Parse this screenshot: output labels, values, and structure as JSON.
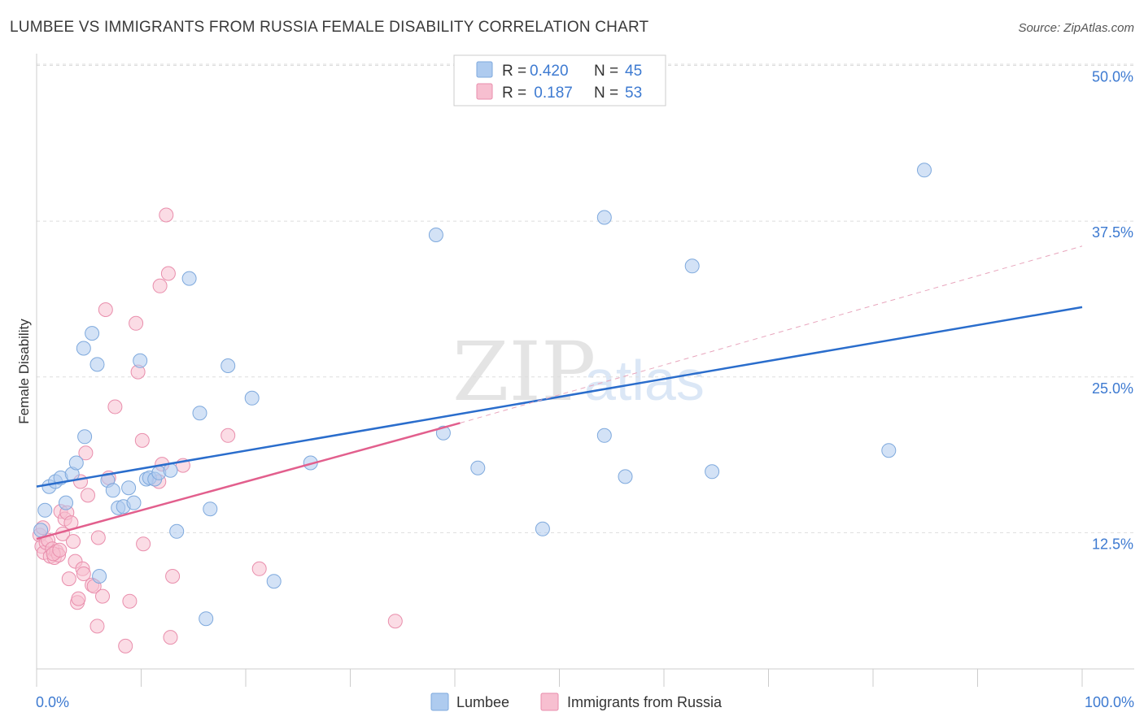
{
  "title": "LUMBEE VS IMMIGRANTS FROM RUSSIA FEMALE DISABILITY CORRELATION CHART",
  "source": "Source: ZipAtlas.com",
  "watermark": {
    "zip": "ZIP",
    "atlas": "atlas"
  },
  "colors": {
    "blue_fill": "#aecbef",
    "blue_stroke": "#7ea9dd",
    "blue_line": "#2a6dcc",
    "pink_fill": "#f7bfd0",
    "pink_stroke": "#e98eac",
    "pink_line": "#e25f8d",
    "grid": "#dddddd",
    "tick_text": "#3d7ad1"
  },
  "legend": {
    "rows": [
      {
        "r_label": "R = ",
        "r_value": "0.420",
        "n_label": "N = ",
        "n_value": "45"
      },
      {
        "r_label": "R = ",
        "r_value": " 0.187",
        "n_label": "N = ",
        "n_value": "53"
      }
    ]
  },
  "bottom_legend": {
    "series1": "Lumbee",
    "series2": "Immigrants from Russia"
  },
  "chart_data": {
    "type": "scatter",
    "title": "LUMBEE VS IMMIGRANTS FROM RUSSIA FEMALE DISABILITY CORRELATION CHART",
    "xlabel": "",
    "ylabel": "Female Disability",
    "xlim": [
      0,
      100
    ],
    "ylim": [
      0,
      52
    ],
    "x_ticks_labels": [
      "0.0%",
      "100.0%"
    ],
    "y_ticks": [
      12.5,
      25.0,
      37.5,
      50.0
    ],
    "y_tick_labels": [
      "12.5%",
      "25.0%",
      "37.5%",
      "50.0%"
    ],
    "series": [
      {
        "name": "Lumbee",
        "color": "blue",
        "trend": {
          "x": [
            0,
            100
          ],
          "y": [
            16.2,
            30.6
          ],
          "dashed_extension": false
        },
        "points": [
          [
            0.8,
            14.3
          ],
          [
            1.2,
            16.2
          ],
          [
            1.8,
            16.6
          ],
          [
            2.3,
            16.9
          ],
          [
            2.8,
            14.9
          ],
          [
            3.4,
            17.2
          ],
          [
            3.8,
            18.1
          ],
          [
            4.5,
            27.3
          ],
          [
            4.6,
            20.2
          ],
          [
            5.3,
            28.5
          ],
          [
            5.8,
            26.0
          ],
          [
            6.0,
            9.0
          ],
          [
            6.8,
            16.7
          ],
          [
            7.3,
            15.9
          ],
          [
            7.8,
            14.5
          ],
          [
            8.3,
            14.6
          ],
          [
            8.8,
            16.1
          ],
          [
            9.3,
            14.9
          ],
          [
            9.9,
            26.3
          ],
          [
            10.5,
            16.8
          ],
          [
            10.8,
            16.9
          ],
          [
            11.3,
            16.8
          ],
          [
            11.7,
            17.3
          ],
          [
            12.8,
            17.5
          ],
          [
            13.4,
            12.6
          ],
          [
            14.6,
            32.9
          ],
          [
            15.6,
            22.1
          ],
          [
            16.2,
            5.6
          ],
          [
            16.6,
            14.4
          ],
          [
            18.3,
            25.9
          ],
          [
            20.6,
            23.3
          ],
          [
            22.7,
            8.6
          ],
          [
            26.2,
            18.1
          ],
          [
            38.2,
            36.4
          ],
          [
            38.9,
            20.5
          ],
          [
            42.2,
            17.7
          ],
          [
            48.4,
            12.8
          ],
          [
            54.3,
            37.8
          ],
          [
            54.3,
            20.3
          ],
          [
            56.3,
            17.0
          ],
          [
            62.7,
            33.9
          ],
          [
            64.6,
            17.4
          ],
          [
            81.5,
            19.1
          ],
          [
            84.9,
            41.6
          ],
          [
            0.4,
            12.7
          ]
        ]
      },
      {
        "name": "Immigrants from Russia",
        "color": "pink",
        "trend": {
          "x": [
            0,
            40.5
          ],
          "y": [
            12.0,
            21.3
          ],
          "dashed_extension": true,
          "dash_to": [
            100,
            35.5
          ]
        },
        "points": [
          [
            0.3,
            12.3
          ],
          [
            0.5,
            11.4
          ],
          [
            0.7,
            10.9
          ],
          [
            0.9,
            11.7
          ],
          [
            1.1,
            11.9
          ],
          [
            1.3,
            10.6
          ],
          [
            1.5,
            11.2
          ],
          [
            1.7,
            10.5
          ],
          [
            1.9,
            11.0
          ],
          [
            2.1,
            10.7
          ],
          [
            2.3,
            14.2
          ],
          [
            2.5,
            12.4
          ],
          [
            2.7,
            13.6
          ],
          [
            2.9,
            14.1
          ],
          [
            3.1,
            8.8
          ],
          [
            3.3,
            13.3
          ],
          [
            3.5,
            11.8
          ],
          [
            3.7,
            10.2
          ],
          [
            3.9,
            6.9
          ],
          [
            4.0,
            7.2
          ],
          [
            4.2,
            16.6
          ],
          [
            4.4,
            9.6
          ],
          [
            4.5,
            9.2
          ],
          [
            4.7,
            18.9
          ],
          [
            4.9,
            15.5
          ],
          [
            5.3,
            8.3
          ],
          [
            5.5,
            8.2
          ],
          [
            5.8,
            5.0
          ],
          [
            5.9,
            12.1
          ],
          [
            6.3,
            7.4
          ],
          [
            6.6,
            30.4
          ],
          [
            6.9,
            16.9
          ],
          [
            7.5,
            22.6
          ],
          [
            8.5,
            3.4
          ],
          [
            8.9,
            7.0
          ],
          [
            9.5,
            29.3
          ],
          [
            9.7,
            25.4
          ],
          [
            10.1,
            19.9
          ],
          [
            10.2,
            11.6
          ],
          [
            11.7,
            16.6
          ],
          [
            11.8,
            32.3
          ],
          [
            12.0,
            18.0
          ],
          [
            12.4,
            38.0
          ],
          [
            12.6,
            33.3
          ],
          [
            12.8,
            4.1
          ],
          [
            13.0,
            9.0
          ],
          [
            14.0,
            17.9
          ],
          [
            18.3,
            20.3
          ],
          [
            21.3,
            9.6
          ],
          [
            34.3,
            5.4
          ],
          [
            1.6,
            10.8
          ],
          [
            2.2,
            11.1
          ],
          [
            0.6,
            12.9
          ]
        ]
      }
    ]
  }
}
